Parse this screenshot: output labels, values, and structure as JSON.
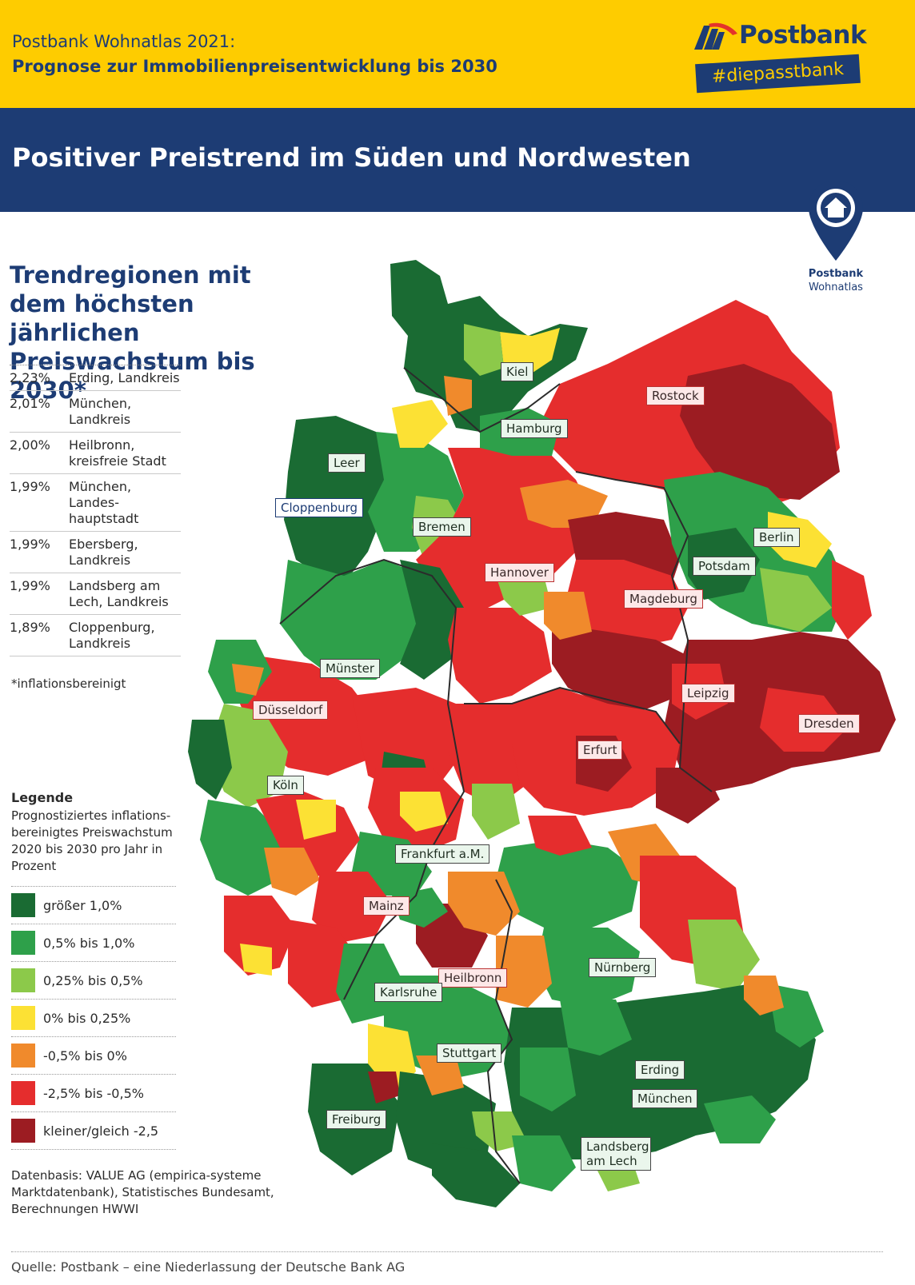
{
  "header": {
    "line1": "Postbank Wohnatlas 2021:",
    "line2": "Prognose zur Immobilienpreisentwicklung bis 2030",
    "brand_name": "Postbank",
    "brand_tagline": "#diepasstbank",
    "headline": "Positiver Preistrend im Süden und Nordwesten"
  },
  "badge": {
    "line1": "Postbank",
    "line2": "Wohnatlas"
  },
  "ranking": {
    "title": "Trendregionen mit dem höchsten jährlichen Preiswachstum bis 2030*",
    "rows": [
      {
        "value": "2,23%",
        "name": "Erding, Landkreis"
      },
      {
        "value": "2,01%",
        "name": "München, Landkreis"
      },
      {
        "value": "2,00%",
        "name": "Heilbronn, kreisfreie Stadt"
      },
      {
        "value": "1,99%",
        "name": "München, Landes-hauptstadt"
      },
      {
        "value": "1,99%",
        "name": "Ebersberg, Landkreis"
      },
      {
        "value": "1,99%",
        "name": "Landsberg am Lech, Landkreis"
      },
      {
        "value": "1,89%",
        "name": "Cloppenburg, Landkreis"
      }
    ],
    "footnote": "*inflationsbereinigt"
  },
  "legend": {
    "title": "Legende",
    "description": "Prognostiziertes inflations-bereinigtes Preiswachstum 2020 bis 2030 pro Jahr in Prozent",
    "items": [
      {
        "label": "größer 1,0%",
        "color": "#1a6b33"
      },
      {
        "label": "0,5% bis 1,0%",
        "color": "#2ea04a"
      },
      {
        "label": "0,25% bis 0,5%",
        "color": "#8cc94a"
      },
      {
        "label": "0% bis 0,25%",
        "color": "#fce134"
      },
      {
        "label": "-0,5% bis 0%",
        "color": "#f08a2c"
      },
      {
        "label": "-2,5% bis -0,5%",
        "color": "#e52d2d"
      },
      {
        "label": "kleiner/gleich -2,5",
        "color": "#9c1c22"
      }
    ]
  },
  "data_source": "Datenbasis: VALUE AG (empirica-systeme Marktdatenbank), Statistisches Bundesamt, Berechnungen HWWI",
  "source": "Quelle: Postbank – eine Niederlassung der Deutsche Bank AG",
  "cities": [
    {
      "name": "Kiel",
      "style": "green"
    },
    {
      "name": "Rostock",
      "style": "red"
    },
    {
      "name": "Hamburg",
      "style": "green"
    },
    {
      "name": "Leer",
      "style": "green"
    },
    {
      "name": "Cloppenburg",
      "style": "plain"
    },
    {
      "name": "Bremen",
      "style": "green"
    },
    {
      "name": "Berlin",
      "style": "green"
    },
    {
      "name": "Hannover",
      "style": "red"
    },
    {
      "name": "Potsdam",
      "style": "green"
    },
    {
      "name": "Magdeburg",
      "style": "red"
    },
    {
      "name": "Münster",
      "style": "green"
    },
    {
      "name": "Leipzig",
      "style": "red"
    },
    {
      "name": "Düsseldorf",
      "style": "red"
    },
    {
      "name": "Dresden",
      "style": "red"
    },
    {
      "name": "Erfurt",
      "style": "red"
    },
    {
      "name": "Köln",
      "style": "green"
    },
    {
      "name": "Frankfurt a.M.",
      "style": "green"
    },
    {
      "name": "Mainz",
      "style": "red"
    },
    {
      "name": "Heilbronn",
      "style": "red"
    },
    {
      "name": "Nürnberg",
      "style": "green"
    },
    {
      "name": "Karlsruhe",
      "style": "green"
    },
    {
      "name": "Stuttgart",
      "style": "green"
    },
    {
      "name": "Erding",
      "style": "green"
    },
    {
      "name": "München",
      "style": "green"
    },
    {
      "name": "Freiburg",
      "style": "green"
    },
    {
      "name": "Landsberg am Lech",
      "style": "green"
    }
  ]
}
